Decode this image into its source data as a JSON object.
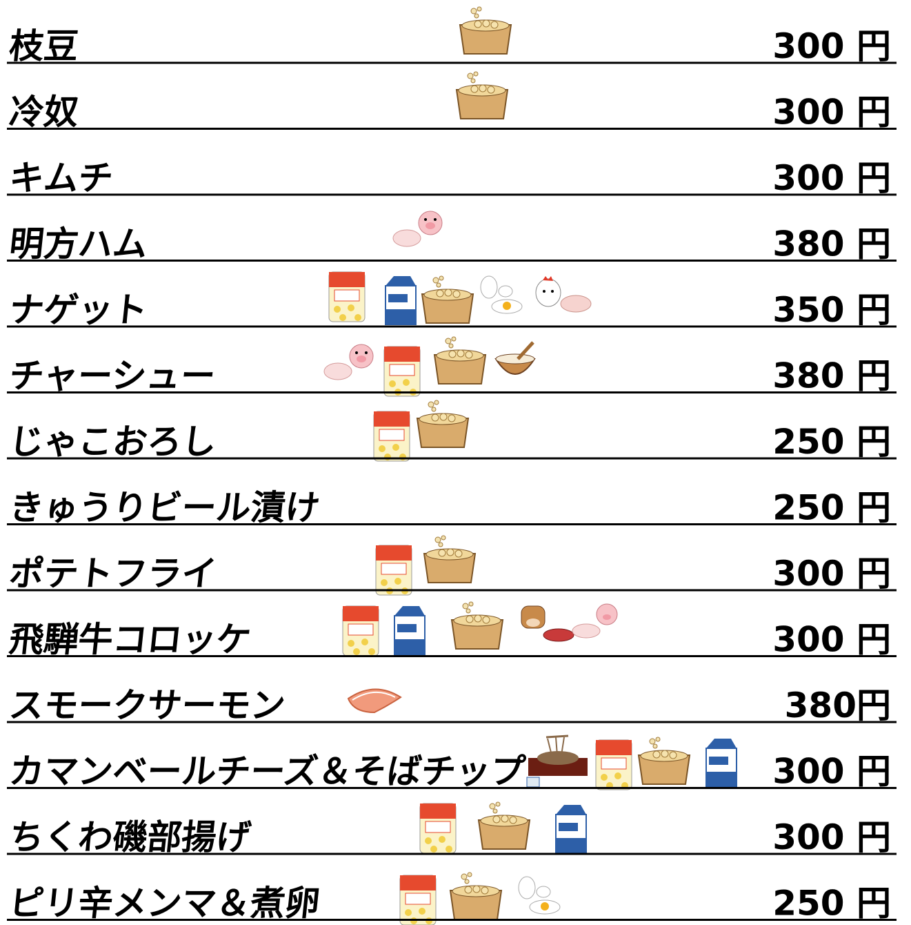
{
  "menu": {
    "items": [
      {
        "name": "枝豆",
        "price": "300 円"
      },
      {
        "name": "冷奴",
        "price": "300 円"
      },
      {
        "name": "キムチ",
        "price": "300 円"
      },
      {
        "name": "明方ハム",
        "price": "380 円"
      },
      {
        "name": "ナゲット",
        "price": "350 円"
      },
      {
        "name": "チャーシュー",
        "price": "380 円"
      },
      {
        "name": "じゃこおろし",
        "price": "250 円"
      },
      {
        "name": "きゅうりビール漬け",
        "price": "250 円"
      },
      {
        "name": "ポテトフライ",
        "price": "300 円"
      },
      {
        "name": "飛騨牛コロッケ",
        "price": "300 円"
      },
      {
        "name": "スモークサーモン",
        "price": "380円"
      },
      {
        "name": "カマンベールチーズ＆そばチップ",
        "price": "300 円"
      },
      {
        "name": "ちくわ磯部揚げ",
        "price": "300 円"
      },
      {
        "name": "ピリ辛メンマ＆煮卵",
        "price": "250 円"
      }
    ]
  }
}
